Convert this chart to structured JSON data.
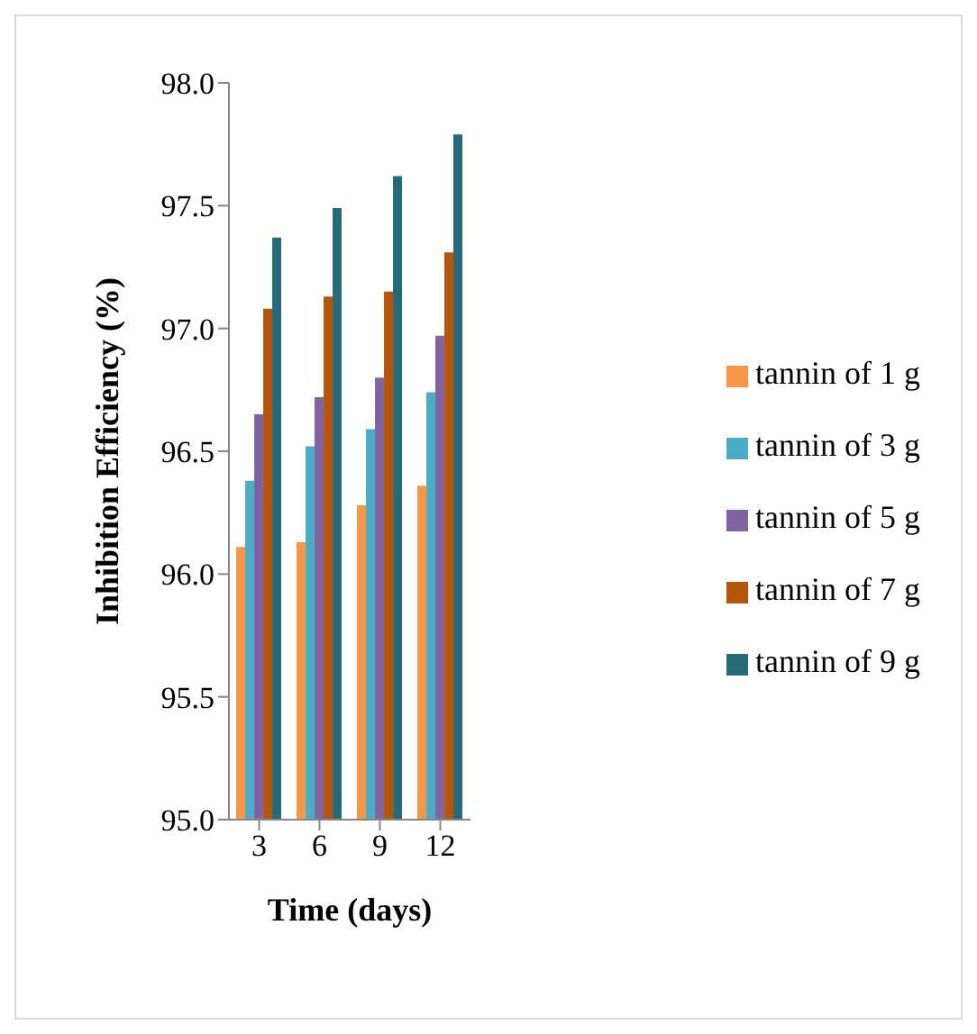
{
  "chart_data": {
    "type": "bar",
    "xlabel": "Time (days)",
    "ylabel": "Inhibition Efficiency  (%)",
    "categories": [
      "3",
      "6",
      "9",
      "12"
    ],
    "series": [
      {
        "name": "tannin of 1 g",
        "color": "#f79646",
        "values": [
          96.11,
          96.13,
          96.28,
          96.36
        ]
      },
      {
        "name": "tannin of 3 g",
        "color": "#4bacc6",
        "values": [
          96.38,
          96.52,
          96.59,
          96.74
        ]
      },
      {
        "name": "tannin of 5 g",
        "color": "#8064a2",
        "values": [
          96.65,
          96.72,
          96.8,
          96.97
        ]
      },
      {
        "name": "tannin of 7 g",
        "color": "#b7560b",
        "values": [
          97.08,
          97.13,
          97.15,
          97.31
        ]
      },
      {
        "name": "tannin of 9 g",
        "color": "#266a7a",
        "values": [
          97.37,
          97.49,
          97.62,
          97.79
        ]
      }
    ],
    "ylim": [
      95,
      98
    ],
    "yticks": [
      {
        "value": 95,
        "label": "95.0"
      },
      {
        "value": 95.5,
        "label": "95.5"
      },
      {
        "value": 96,
        "label": "96.0"
      },
      {
        "value": 96.5,
        "label": "96.5"
      },
      {
        "value": 97,
        "label": "97.0"
      },
      {
        "value": 97.5,
        "label": "97.5"
      },
      {
        "value": 98,
        "label": "98.0"
      }
    ],
    "grid": false,
    "legend": "right"
  }
}
